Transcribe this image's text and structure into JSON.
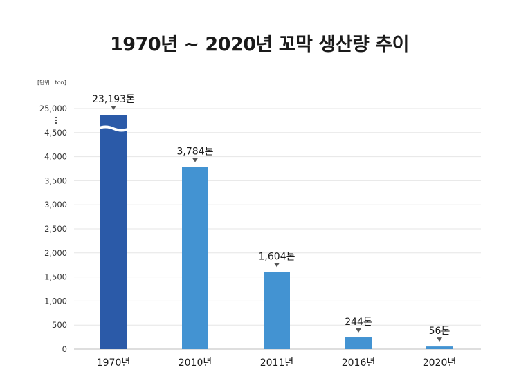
{
  "title": "1970년 ~ 2020년 꼬막 생산량 추이",
  "unit_label": "[단위 : ton]",
  "chart_data": {
    "type": "bar",
    "title": "1970년 ~ 2020년 꼬막 생산량 추이",
    "xlabel": "",
    "ylabel": "",
    "categories": [
      "1970년",
      "2010년",
      "2011년",
      "2016년",
      "2020년"
    ],
    "values": [
      23193,
      3784,
      1604,
      244,
      56
    ],
    "data_labels": [
      "23,193톤",
      "3,784톤",
      "1,604톤",
      "244톤",
      "56톤"
    ],
    "yticks": [
      "0",
      "500",
      "1,000",
      "1,500",
      "2,000",
      "2,500",
      "3,000",
      "3,500",
      "4,000",
      "4,500",
      "25,000"
    ],
    "ylim": [
      0,
      4500
    ],
    "axis_break": {
      "from": 4500,
      "to": 25000
    },
    "colors": [
      "#2b5aa8",
      "#4393d2",
      "#4393d2",
      "#4393d2",
      "#4393d2"
    ],
    "grid": true,
    "legend": "none"
  }
}
